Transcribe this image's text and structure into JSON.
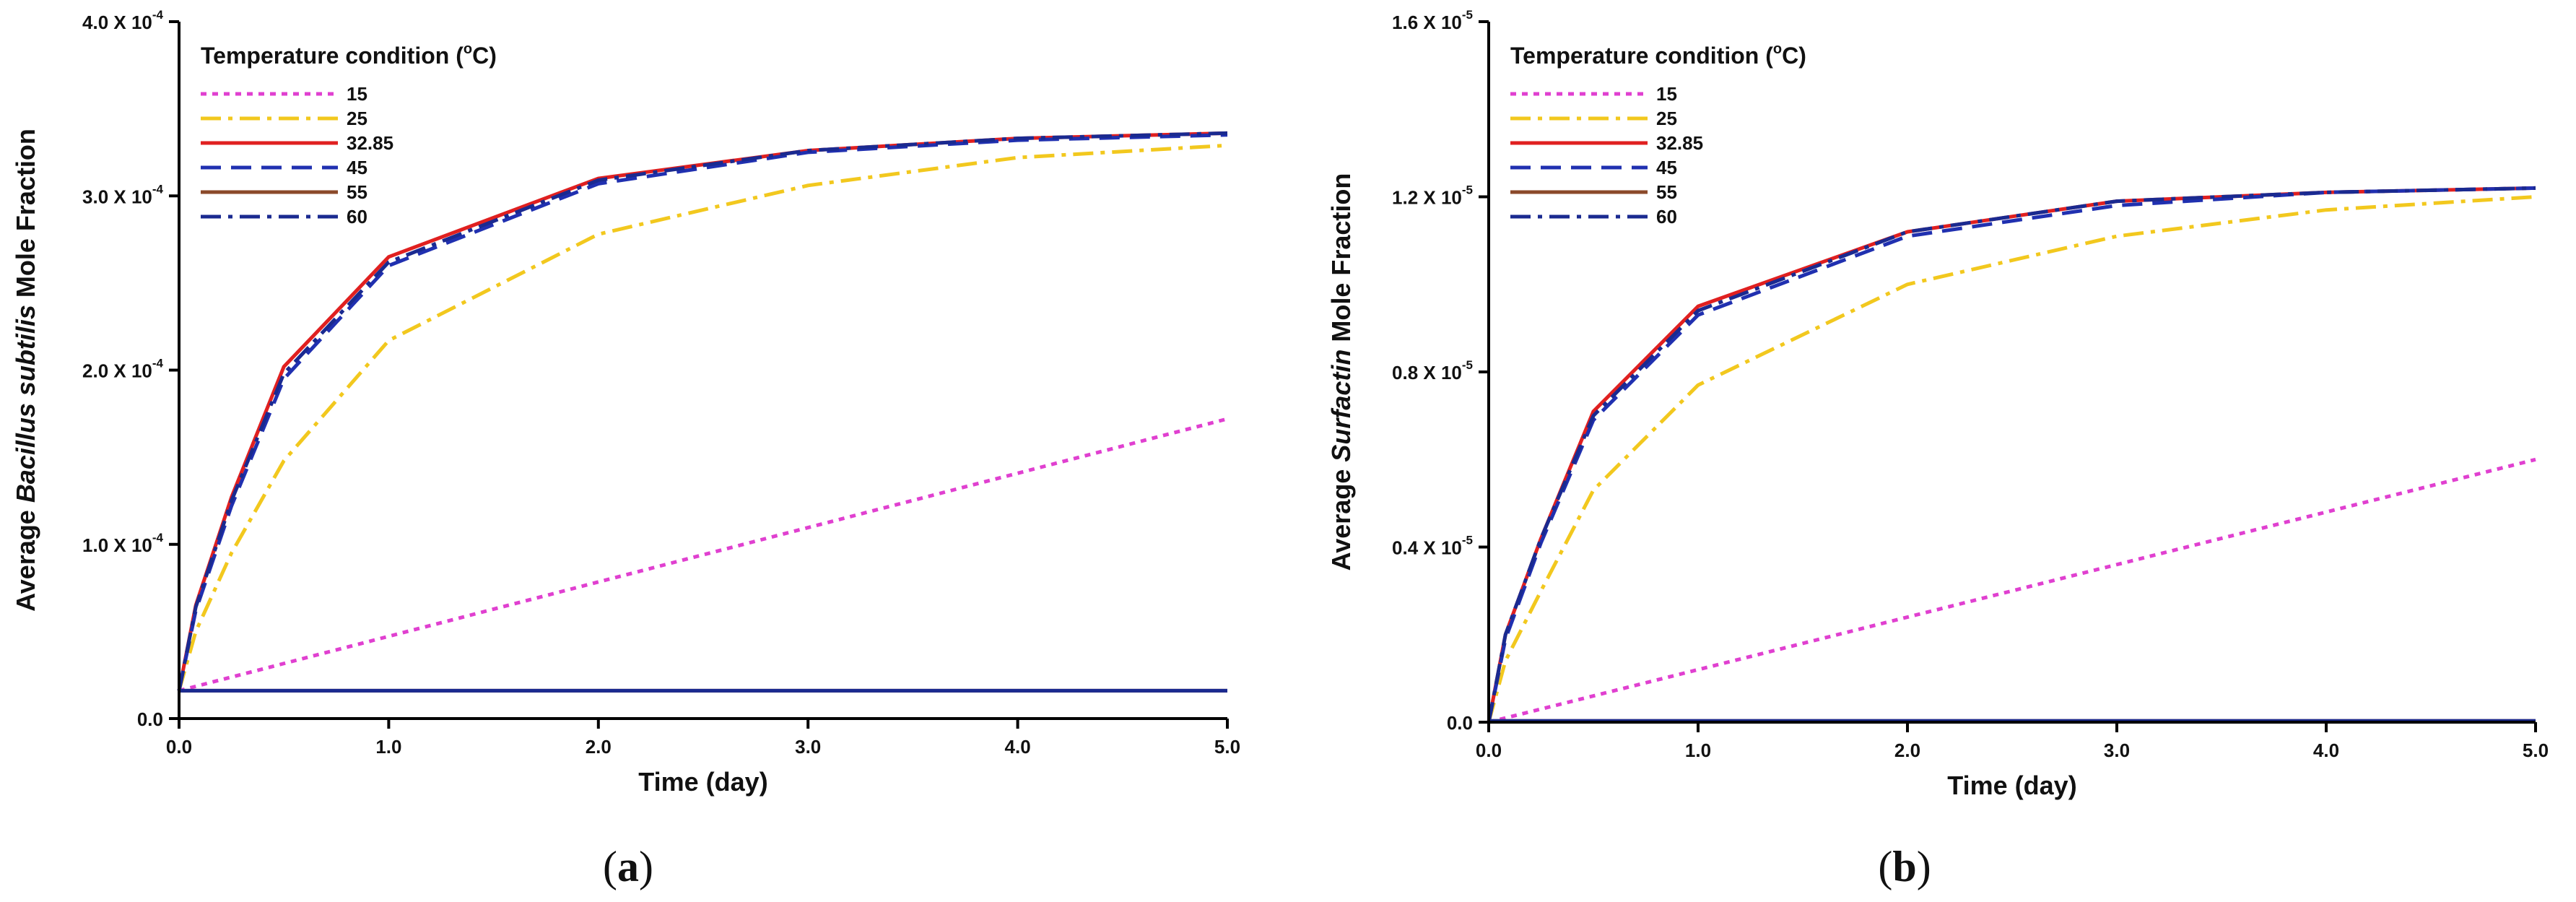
{
  "figure_labels": [
    "a",
    "b"
  ],
  "legend_title_prefix": "Temperature condition (",
  "legend_title_sup": "o",
  "legend_title_suffix": "C)",
  "series_styles": [
    {
      "name": "15",
      "color": "#e040d0",
      "dash": "dot"
    },
    {
      "name": "25",
      "color": "#f2c81e",
      "dash": "dashdot"
    },
    {
      "name": "32.85",
      "color": "#e02020",
      "dash": "solid"
    },
    {
      "name": "45",
      "color": "#2030b0",
      "dash": "dash"
    },
    {
      "name": "55",
      "color": "#8b4a2a",
      "dash": "solid"
    },
    {
      "name": "60",
      "color": "#1a2a90",
      "dash": "dashdot"
    }
  ],
  "chart_data": [
    {
      "type": "line",
      "panel": "a",
      "title": "",
      "xlabel": "Time (day)",
      "ylabel_prefix": "Average ",
      "ylabel_italic": "Bacillus subtilis",
      "ylabel_suffix": " Mole Fraction",
      "xlim": [
        0,
        5
      ],
      "ylim": [
        0,
        4.0
      ],
      "x_ticks": [
        "0.0",
        "1.0",
        "2.0",
        "3.0",
        "4.0",
        "5.0"
      ],
      "y_ticks": [
        {
          "value": 0,
          "mant": "0.0",
          "exp": ""
        },
        {
          "value": 1.0,
          "mant": "1.0 X 10",
          "exp": "-4"
        },
        {
          "value": 2.0,
          "mant": "2.0 X 10",
          "exp": "-4"
        },
        {
          "value": 3.0,
          "mant": "3.0 X 10",
          "exp": "-4"
        },
        {
          "value": 4.0,
          "mant": "4.0 X 10",
          "exp": "-4"
        }
      ],
      "series": [
        {
          "name": "15",
          "x": [
            0,
            5
          ],
          "y": [
            0.16,
            1.72
          ]
        },
        {
          "name": "25",
          "x": [
            0,
            0.08,
            0.25,
            0.5,
            1,
            2,
            3,
            4,
            5
          ],
          "y": [
            0.16,
            0.5,
            0.95,
            1.48,
            2.17,
            2.78,
            3.06,
            3.22,
            3.29
          ]
        },
        {
          "name": "32.85",
          "x": [
            0,
            0.08,
            0.25,
            0.5,
            1,
            2,
            3,
            4,
            5
          ],
          "y": [
            0.16,
            0.65,
            1.27,
            2.02,
            2.65,
            3.1,
            3.26,
            3.33,
            3.36
          ]
        },
        {
          "name": "45",
          "x": [
            0,
            0.08,
            0.25,
            0.5,
            1,
            2,
            3,
            4,
            5
          ],
          "y": [
            0.16,
            0.62,
            1.22,
            1.95,
            2.6,
            3.07,
            3.25,
            3.32,
            3.35
          ]
        },
        {
          "name": "55",
          "x": [
            0,
            5
          ],
          "y": [
            0.16,
            0.16
          ]
        },
        {
          "name": "60",
          "x": [
            0,
            0.08,
            0.25,
            0.5,
            1,
            2,
            3,
            4,
            5
          ],
          "y": [
            0.16,
            0.64,
            1.25,
            1.98,
            2.62,
            3.09,
            3.26,
            3.33,
            3.36
          ]
        }
      ],
      "extra_lines": [
        {
          "color": "#1a2a90",
          "x": [
            0,
            5
          ],
          "y": [
            0.16,
            0.16
          ]
        }
      ]
    },
    {
      "type": "line",
      "panel": "b",
      "title": "",
      "xlabel": "Time (day)",
      "ylabel_prefix": "Average ",
      "ylabel_italic": "Surfactin",
      "ylabel_suffix": " Mole Fraction",
      "xlim": [
        0,
        5
      ],
      "ylim": [
        0,
        1.6
      ],
      "x_ticks": [
        "0.0",
        "1.0",
        "2.0",
        "3.0",
        "4.0",
        "5.0"
      ],
      "y_ticks": [
        {
          "value": 0,
          "mant": "0.0",
          "exp": ""
        },
        {
          "value": 0.4,
          "mant": "0.4 X 10",
          "exp": "-5"
        },
        {
          "value": 0.8,
          "mant": "0.8 X 10",
          "exp": "-5"
        },
        {
          "value": 1.2,
          "mant": "1.2 X 10",
          "exp": "-5"
        },
        {
          "value": 1.6,
          "mant": "1.6 X 10",
          "exp": "-5"
        }
      ],
      "series": [
        {
          "name": "15",
          "x": [
            0,
            5
          ],
          "y": [
            0.0,
            0.6
          ]
        },
        {
          "name": "25",
          "x": [
            0,
            0.08,
            0.25,
            0.5,
            1,
            2,
            3,
            4,
            5
          ],
          "y": [
            0.0,
            0.14,
            0.3,
            0.53,
            0.77,
            1.0,
            1.11,
            1.17,
            1.2
          ]
        },
        {
          "name": "32.85",
          "x": [
            0,
            0.08,
            0.25,
            0.5,
            1,
            2,
            3,
            4,
            5
          ],
          "y": [
            0.0,
            0.2,
            0.42,
            0.71,
            0.95,
            1.12,
            1.19,
            1.21,
            1.22
          ]
        },
        {
          "name": "45",
          "x": [
            0,
            0.08,
            0.25,
            0.5,
            1,
            2,
            3,
            4,
            5
          ],
          "y": [
            0.0,
            0.19,
            0.41,
            0.69,
            0.93,
            1.11,
            1.18,
            1.21,
            1.22
          ]
        },
        {
          "name": "55",
          "x": [
            0,
            5
          ],
          "y": [
            0.003,
            0.003
          ]
        },
        {
          "name": "60",
          "x": [
            0,
            0.08,
            0.25,
            0.5,
            1,
            2,
            3,
            4,
            5
          ],
          "y": [
            0.0,
            0.2,
            0.42,
            0.7,
            0.94,
            1.12,
            1.19,
            1.21,
            1.22
          ]
        }
      ],
      "extra_lines": [
        {
          "color": "#1a2a90",
          "x": [
            0,
            5
          ],
          "y": [
            0.003,
            0.003
          ]
        }
      ]
    }
  ]
}
